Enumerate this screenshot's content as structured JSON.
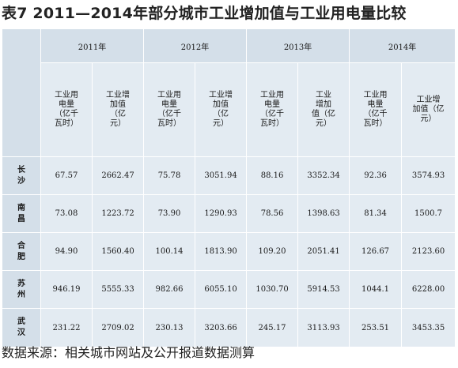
{
  "title": "表7  2011—2014年部分城市工业增加值与工业用电量比较",
  "years": [
    "2011年",
    "2012年",
    "2013年",
    "2014年"
  ],
  "sub_headers": [
    "工业用\n电量\n（亿千\n瓦时）",
    "工业增\n加值\n（亿\n元）",
    "工业用\n电量\n（亿千\n瓦时）",
    "工业增\n加值\n（亿\n元）",
    "工业用\n电量\n（亿千\n瓦时）",
    "工业\n增加\n值（亿\n元）",
    "工业用\n电量\n（亿千\n瓦时）",
    "工业增\n加值（亿\n元）"
  ],
  "rows": [
    {
      "city": "长\n沙",
      "values": [
        "67.57",
        "2662.47",
        "75.78",
        "3051.94",
        "88.16",
        "3352.34",
        "92.36",
        "3574.93"
      ]
    },
    {
      "city": "南\n昌",
      "values": [
        "73.08",
        "1223.72",
        "73.90",
        "1290.93",
        "78.56",
        "1398.63",
        "81.34",
        "1500.7"
      ]
    },
    {
      "city": "合\n肥",
      "values": [
        "94.90",
        "1560.40",
        "100.14",
        "1813.90",
        "109.20",
        "2051.41",
        "126.67",
        "2123.60"
      ]
    },
    {
      "city": "苏\n州",
      "values": [
        "946.19",
        "5555.33",
        "982.66",
        "6055.10",
        "1030.70",
        "5914.53",
        "1044.1",
        "6228.00"
      ]
    },
    {
      "city": "武\n汉",
      "values": [
        "231.22",
        "2709.02",
        "230.13",
        "3203.66",
        "245.17",
        "3113.93",
        "253.51",
        "3453.35"
      ]
    }
  ],
  "source": "数据来源：相关城市网站及公开报道数据测算",
  "colors": {
    "header_fill": "#d4dfe9",
    "body_fill": "#e3ebf2",
    "grid_line": "#ffffff"
  }
}
